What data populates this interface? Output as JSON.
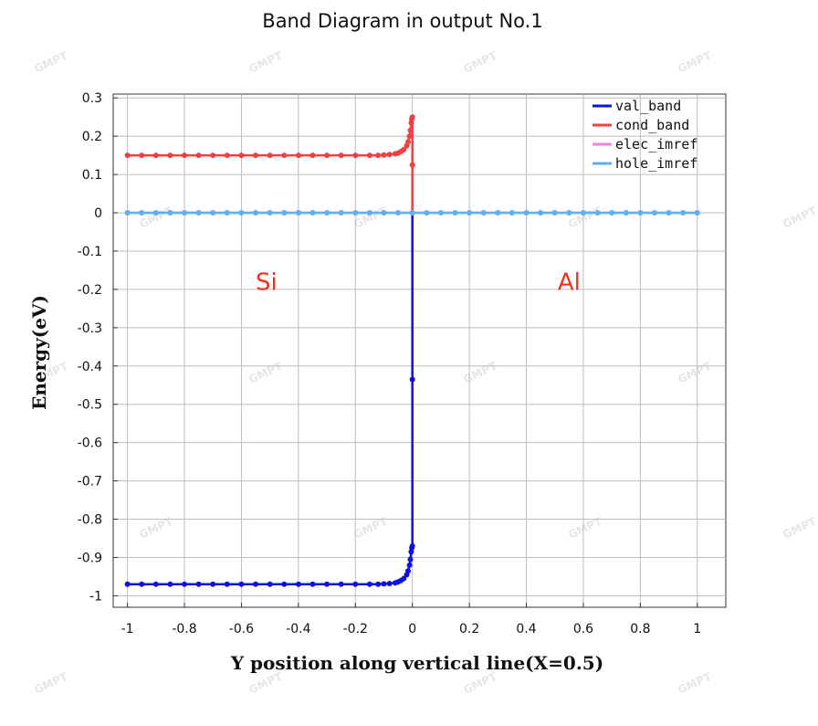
{
  "chart_data": {
    "type": "line",
    "title": "Band Diagram in output No.1",
    "xlabel": "Y position along vertical line(X=0.5)",
    "ylabel": "Energy(eV)",
    "xlim": [
      -1.05,
      1.1
    ],
    "ylim": [
      -1.03,
      0.31
    ],
    "xticks": [
      -1,
      -0.8,
      -0.6,
      -0.4,
      -0.2,
      0,
      0.2,
      0.4,
      0.6,
      0.8,
      1
    ],
    "xtick_labels": [
      "-1",
      "-0.8",
      "-0.6",
      "-0.4",
      "-0.2",
      "0",
      "0.2",
      "0.4",
      "0.6",
      "0.8",
      "1"
    ],
    "yticks": [
      0.3,
      0.2,
      0.1,
      0,
      -0.1,
      -0.2,
      -0.3,
      -0.4,
      -0.5,
      -0.6,
      -0.7,
      -0.8,
      -0.9,
      -1
    ],
    "ytick_labels": [
      "0.3",
      "0.2",
      "0.1",
      "0",
      "-0.1",
      "-0.2",
      "-0.3",
      "-0.4",
      "-0.5",
      "-0.6",
      "-0.7",
      "-0.8",
      "-0.9",
      "-1"
    ],
    "grid": true,
    "legend_position": "top-right",
    "series": [
      {
        "name": "val_band",
        "color": "#1010e0",
        "x": [
          -1,
          -0.95,
          -0.9,
          -0.85,
          -0.8,
          -0.75,
          -0.7,
          -0.65,
          -0.6,
          -0.55,
          -0.5,
          -0.45,
          -0.4,
          -0.35,
          -0.3,
          -0.25,
          -0.2,
          -0.15,
          -0.12,
          -0.1,
          -0.08,
          -0.06,
          -0.05,
          -0.04,
          -0.03,
          -0.02,
          -0.015,
          -0.01,
          -0.007,
          -0.004,
          -0.002,
          0,
          0,
          0
        ],
        "y": [
          -0.97,
          -0.97,
          -0.97,
          -0.97,
          -0.97,
          -0.97,
          -0.97,
          -0.97,
          -0.97,
          -0.97,
          -0.97,
          -0.97,
          -0.97,
          -0.97,
          -0.97,
          -0.97,
          -0.97,
          -0.97,
          -0.97,
          -0.969,
          -0.968,
          -0.966,
          -0.964,
          -0.96,
          -0.955,
          -0.945,
          -0.935,
          -0.92,
          -0.905,
          -0.885,
          -0.875,
          -0.87,
          -0.435,
          0
        ]
      },
      {
        "name": "cond_band",
        "color": "#f04040",
        "x": [
          -1,
          -0.95,
          -0.9,
          -0.85,
          -0.8,
          -0.75,
          -0.7,
          -0.65,
          -0.6,
          -0.55,
          -0.5,
          -0.45,
          -0.4,
          -0.35,
          -0.3,
          -0.25,
          -0.2,
          -0.15,
          -0.12,
          -0.1,
          -0.08,
          -0.06,
          -0.05,
          -0.04,
          -0.03,
          -0.02,
          -0.015,
          -0.01,
          -0.007,
          -0.004,
          -0.002,
          0,
          0,
          0
        ],
        "y": [
          0.15,
          0.15,
          0.15,
          0.15,
          0.15,
          0.15,
          0.15,
          0.15,
          0.15,
          0.15,
          0.15,
          0.15,
          0.15,
          0.15,
          0.15,
          0.15,
          0.15,
          0.15,
          0.15,
          0.151,
          0.152,
          0.154,
          0.156,
          0.16,
          0.165,
          0.175,
          0.185,
          0.2,
          0.215,
          0.235,
          0.245,
          0.25,
          0.125,
          0
        ]
      },
      {
        "name": "elec_imref",
        "color": "#f080e0",
        "x": [
          -1,
          -0.95,
          -0.9,
          -0.85,
          -0.8,
          -0.75,
          -0.7,
          -0.65,
          -0.6,
          -0.55,
          -0.5,
          -0.45,
          -0.4,
          -0.35,
          -0.3,
          -0.25,
          -0.2,
          -0.15,
          -0.1,
          -0.05,
          0,
          0.05,
          0.1,
          0.15,
          0.2,
          0.25,
          0.3,
          0.35,
          0.4,
          0.45,
          0.5,
          0.55,
          0.6,
          0.65,
          0.7,
          0.75,
          0.8,
          0.85,
          0.9,
          0.95,
          1
        ],
        "y": [
          0,
          0,
          0,
          0,
          0,
          0,
          0,
          0,
          0,
          0,
          0,
          0,
          0,
          0,
          0,
          0,
          0,
          0,
          0,
          0,
          0,
          0,
          0,
          0,
          0,
          0,
          0,
          0,
          0,
          0,
          0,
          0,
          0,
          0,
          0,
          0,
          0,
          0,
          0,
          0,
          0
        ]
      },
      {
        "name": "hole_imref",
        "color": "#60b0f0",
        "x": [
          -1,
          -0.95,
          -0.9,
          -0.85,
          -0.8,
          -0.75,
          -0.7,
          -0.65,
          -0.6,
          -0.55,
          -0.5,
          -0.45,
          -0.4,
          -0.35,
          -0.3,
          -0.25,
          -0.2,
          -0.15,
          -0.1,
          -0.05,
          0,
          0.05,
          0.1,
          0.15,
          0.2,
          0.25,
          0.3,
          0.35,
          0.4,
          0.45,
          0.5,
          0.55,
          0.6,
          0.65,
          0.7,
          0.75,
          0.8,
          0.85,
          0.9,
          0.95,
          1
        ],
        "y": [
          0,
          0,
          0,
          0,
          0,
          0,
          0,
          0,
          0,
          0,
          0,
          0,
          0,
          0,
          0,
          0,
          0,
          0,
          0,
          0,
          0,
          0,
          0,
          0,
          0,
          0,
          0,
          0,
          0,
          0,
          0,
          0,
          0,
          0,
          0,
          0,
          0,
          0,
          0,
          0,
          0
        ]
      }
    ],
    "annotations": [
      {
        "text": "Si",
        "x": -0.55,
        "y": -0.18,
        "color": "#ee3322"
      },
      {
        "text": "Al",
        "x": 0.51,
        "y": -0.18,
        "color": "#ee3322"
      }
    ]
  },
  "watermark": {
    "text": "GMPT"
  }
}
